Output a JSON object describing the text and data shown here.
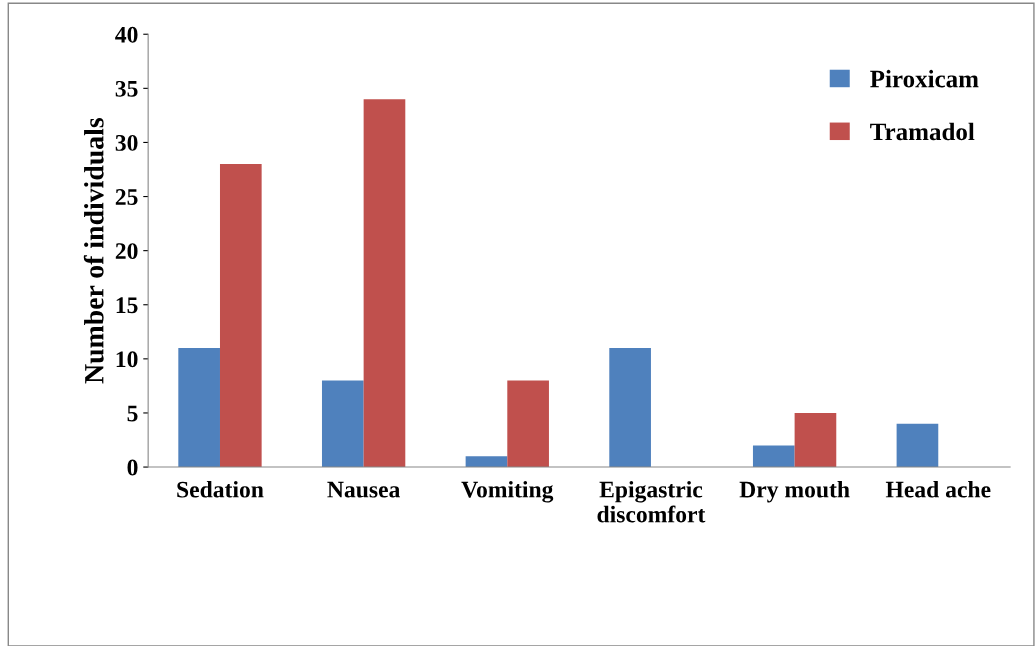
{
  "chart_data": {
    "type": "bar",
    "ylabel": "Number of individuals",
    "categories": [
      "Sedation",
      "Nausea",
      "Vomiting",
      "Epigastric\ndiscomfort",
      "Dry mouth",
      "Head ache"
    ],
    "series": [
      {
        "name": "Piroxicam",
        "color": "#4f81bd",
        "values": [
          11,
          8,
          1,
          11,
          2,
          4
        ]
      },
      {
        "name": "Tramadol",
        "color": "#c0504d",
        "values": [
          28,
          34,
          8,
          0,
          5,
          0
        ]
      }
    ],
    "ylim": [
      0,
      40
    ],
    "yticks": [
      0,
      5,
      10,
      15,
      20,
      25,
      30,
      35,
      40
    ],
    "grid": false,
    "legend": "top right"
  }
}
